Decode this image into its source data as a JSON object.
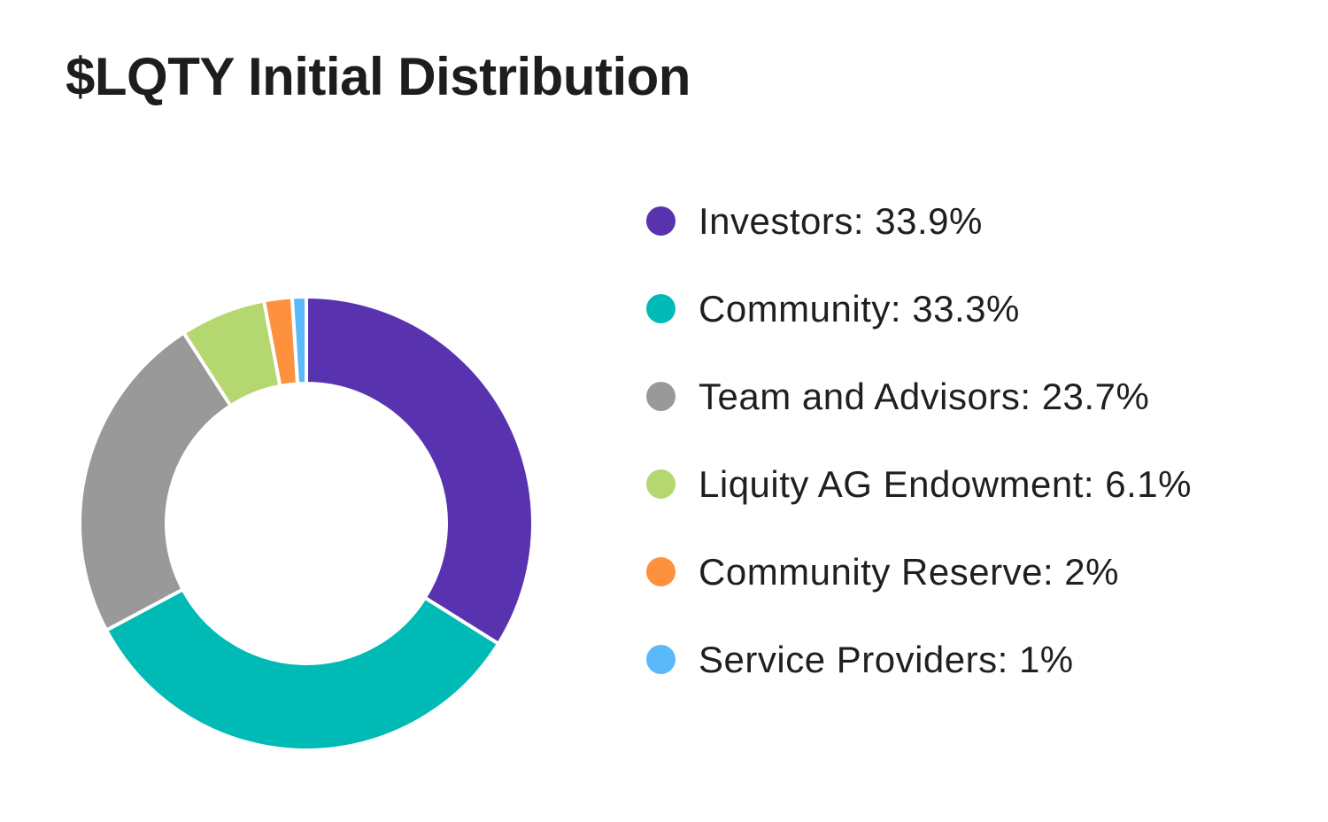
{
  "chart_data": {
    "type": "pie",
    "title": "$LQTY Initial Distribution",
    "donut": true,
    "legend_position": "right",
    "slices": [
      {
        "label": "Investors",
        "value": 33.9,
        "value_text": "33.9%",
        "color": "#5932b0"
      },
      {
        "label": "Community",
        "value": 33.3,
        "value_text": "33.3%",
        "color": "#00bab6"
      },
      {
        "label": "Team and Advisors",
        "value": 23.7,
        "value_text": "23.7%",
        "color": "#999999"
      },
      {
        "label": "Liquity AG Endowment",
        "value": 6.1,
        "value_text": "6.1%",
        "color": "#b5d76f"
      },
      {
        "label": "Community Reserve",
        "value": 2,
        "value_text": "2%",
        "color": "#fd913d"
      },
      {
        "label": "Service Providers",
        "value": 1,
        "value_text": "1%",
        "color": "#5ab9f9"
      }
    ]
  }
}
